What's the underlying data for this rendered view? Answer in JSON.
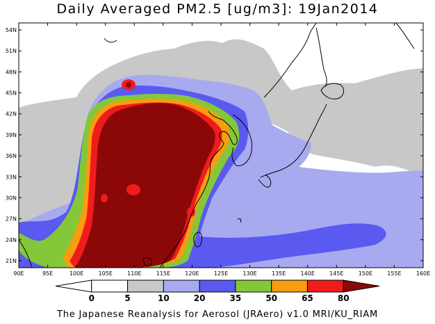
{
  "title": "Daily Averaged PM2.5 [ug/m3]: 19Jan2014",
  "credit": "The Japanese Reanalysis for Aerosol (JRAero) v1.0 MRI/KU_RIAM",
  "map": {
    "lon_range": [
      90,
      160
    ],
    "lat_range": [
      20,
      55
    ],
    "lon_ticks": [
      "90E",
      "95E",
      "100E",
      "105E",
      "110E",
      "115E",
      "120E",
      "125E",
      "130E",
      "135E",
      "140E",
      "145E",
      "150E",
      "155E",
      "160E"
    ],
    "lat_ticks": [
      "21N",
      "24N",
      "27N",
      "30N",
      "33N",
      "36N",
      "39N",
      "42N",
      "45N",
      "48N",
      "51N",
      "54N"
    ]
  },
  "colorbar": {
    "levels": [
      "0",
      "5",
      "10",
      "20",
      "35",
      "50",
      "65",
      "80"
    ],
    "colors": [
      "#ffffff",
      "#ffffff",
      "#c8c8c8",
      "#a8aaf0",
      "#5a5af0",
      "#84c83a",
      "#f89c10",
      "#f01c1c",
      "#8c0808"
    ]
  },
  "colors": {
    "background": "#ffffff",
    "coast": "#000000"
  }
}
